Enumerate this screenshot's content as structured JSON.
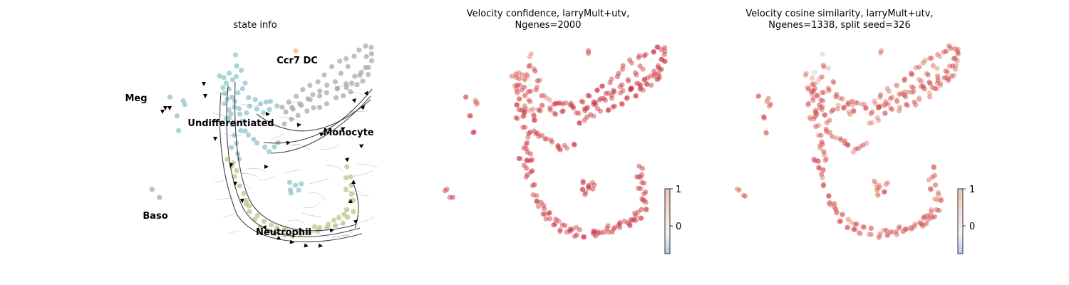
{
  "chart_data": [
    {
      "type": "scatter",
      "subtype": "velocity-stream-embedding",
      "title": "state info",
      "legend": "on data",
      "groups": [
        {
          "name": "Undifferentiated",
          "color": "#8fc4cc",
          "points": [
            [
              10,
              10
            ],
            [
              15,
              15
            ],
            [
              12,
              28
            ],
            [
              16,
              35
            ],
            [
              18,
              44
            ],
            [
              14,
              50
            ],
            [
              20,
              60
            ],
            [
              22,
              70
            ],
            [
              25,
              82
            ],
            [
              28,
              95
            ],
            [
              30,
              105
            ],
            [
              26,
              112
            ],
            [
              32,
              120
            ],
            [
              35,
              128
            ],
            [
              24,
              40
            ],
            [
              30,
              48
            ],
            [
              34,
              58
            ],
            [
              38,
              66
            ],
            [
              40,
              76
            ],
            [
              36,
              88
            ],
            [
              45,
              62
            ],
            [
              52,
              55
            ],
            [
              60,
              58
            ],
            [
              66,
              52
            ],
            [
              72,
              50
            ],
            [
              80,
              48
            ],
            [
              88,
              52
            ],
            [
              78,
              60
            ],
            [
              70,
              64
            ],
            [
              18,
              22
            ],
            [
              22,
              30
            ],
            [
              26,
              18
            ],
            [
              20,
              8
            ],
            [
              30,
              12
            ],
            [
              28,
              55
            ],
            [
              24,
              64
            ],
            [
              16,
              72
            ],
            [
              33,
              36
            ],
            [
              40,
              30
            ],
            [
              -40,
              52
            ],
            [
              -44,
              45
            ],
            [
              -60,
              40
            ],
            [
              -50,
              68
            ],
            [
              -48,
              90
            ],
            [
              42,
              90
            ],
            [
              48,
              96
            ],
            [
              56,
              100
            ],
            [
              62,
              104
            ],
            [
              70,
              110
            ],
            [
              76,
              116
            ],
            [
              84,
              112
            ],
            [
              92,
              106
            ],
            [
              110,
              178
            ],
            [
              114,
              166
            ],
            [
              118,
              172
            ],
            [
              122,
              164
            ],
            [
              105,
              162
            ],
            [
              108,
              170
            ],
            [
              32,
              -18
            ],
            [
              34,
              -4
            ],
            [
              38,
              2
            ],
            [
              46,
              20
            ],
            [
              50,
              40
            ],
            [
              58,
              44
            ]
          ]
        },
        {
          "name": "Monocyte",
          "color": "#a9a9a9",
          "points": [
            [
              100,
              80
            ],
            [
              110,
              72
            ],
            [
              120,
              66
            ],
            [
              130,
              60
            ],
            [
              140,
              58
            ],
            [
              150,
              54
            ],
            [
              160,
              50
            ],
            [
              170,
              44
            ],
            [
              180,
              38
            ],
            [
              190,
              32
            ],
            [
              200,
              24
            ],
            [
              210,
              18
            ],
            [
              215,
              10
            ],
            [
              218,
              0
            ],
            [
              220,
              -10
            ],
            [
              222,
              -20
            ],
            [
              220,
              -28
            ],
            [
              212,
              -30
            ],
            [
              205,
              -24
            ],
            [
              195,
              -18
            ],
            [
              185,
              -14
            ],
            [
              175,
              -8
            ],
            [
              165,
              0
            ],
            [
              155,
              10
            ],
            [
              145,
              18
            ],
            [
              135,
              26
            ],
            [
              125,
              32
            ],
            [
              115,
              40
            ],
            [
              105,
              48
            ],
            [
              95,
              56
            ],
            [
              100,
              64
            ],
            [
              112,
              58
            ],
            [
              124,
              52
            ],
            [
              136,
              46
            ],
            [
              148,
              40
            ],
            [
              160,
              34
            ],
            [
              172,
              28
            ],
            [
              184,
              22
            ],
            [
              196,
              14
            ],
            [
              206,
              6
            ],
            [
              212,
              -2
            ],
            [
              216,
              -14
            ],
            [
              190,
              0
            ],
            [
              180,
              10
            ],
            [
              170,
              18
            ],
            [
              160,
              26
            ],
            [
              150,
              32
            ],
            [
              140,
              38
            ],
            [
              130,
              44
            ],
            [
              120,
              50
            ],
            [
              110,
              56
            ],
            [
              175,
              30
            ],
            [
              185,
              26
            ],
            [
              195,
              20
            ],
            [
              205,
              12
            ]
          ]
        },
        {
          "name": "Neutrophil",
          "color": "#bfc38a",
          "points": [
            [
              20,
              128
            ],
            [
              26,
              140
            ],
            [
              30,
              152
            ],
            [
              36,
              166
            ],
            [
              40,
              178
            ],
            [
              46,
              192
            ],
            [
              52,
              204
            ],
            [
              58,
              214
            ],
            [
              66,
              222
            ],
            [
              76,
              228
            ],
            [
              86,
              232
            ],
            [
              98,
              234
            ],
            [
              110,
              236
            ],
            [
              122,
              234
            ],
            [
              134,
              232
            ],
            [
              146,
              228
            ],
            [
              158,
              224
            ],
            [
              170,
              220
            ],
            [
              180,
              216
            ],
            [
              188,
              210
            ],
            [
              194,
              200
            ],
            [
              196,
              188
            ],
            [
              194,
              176
            ],
            [
              192,
              164
            ],
            [
              190,
              152
            ],
            [
              188,
              140
            ],
            [
              44,
              188
            ],
            [
              60,
              206
            ],
            [
              80,
              220
            ],
            [
              100,
              226
            ],
            [
              120,
              228
            ],
            [
              140,
              224
            ],
            [
              160,
              220
            ],
            [
              176,
              212
            ],
            [
              186,
              200
            ],
            [
              190,
              186
            ],
            [
              186,
              170
            ],
            [
              184,
              156
            ],
            [
              28,
              132
            ],
            [
              34,
              146
            ],
            [
              50,
              196
            ],
            [
              70,
              214
            ],
            [
              90,
              226
            ],
            [
              130,
              230
            ],
            [
              150,
              226
            ],
            [
              168,
              216
            ],
            [
              182,
              206
            ]
          ]
        },
        {
          "name": "Megakaryocyte",
          "color": "#c1c7d3",
          "points": []
        },
        {
          "name": "Ccr7 DC",
          "color": "#f4b183",
          "points": [
            [
              114,
              -22
            ]
          ]
        },
        {
          "name": "Baso",
          "color": "#9aacbc",
          "points": [
            [
              -86,
              170
            ],
            [
              -78,
              182
            ]
          ]
        }
      ],
      "labels": [
        "Ccr7 DC",
        "Meg",
        "Undifferentiated",
        "Monocyte",
        "Baso",
        "Neutrophil"
      ]
    },
    {
      "type": "scatter",
      "title": "Velocity confidence, larryMult+utv,",
      "subtitle": "Ngenes=2000",
      "colormap": "coolwarm",
      "colorbar": {
        "ticks": [
          1,
          0
        ],
        "range": [
          -0.45,
          1
        ]
      },
      "value_summary": "most cells ~0.85-1.0 (dark red); lower values in the Undifferentiated/upper region"
    },
    {
      "type": "scatter",
      "title": "Velocity cosine similarity, larryMult+utv,",
      "subtitle": "Ngenes=1338, split seed=326",
      "colormap": "coolwarm",
      "colorbar": {
        "ticks": [
          1,
          0
        ],
        "range": [
          -0.45,
          1
        ]
      },
      "value_summary": "mostly 0.6-0.95 (red/salmon); some near 0 (white/blue) in the upper region"
    }
  ]
}
